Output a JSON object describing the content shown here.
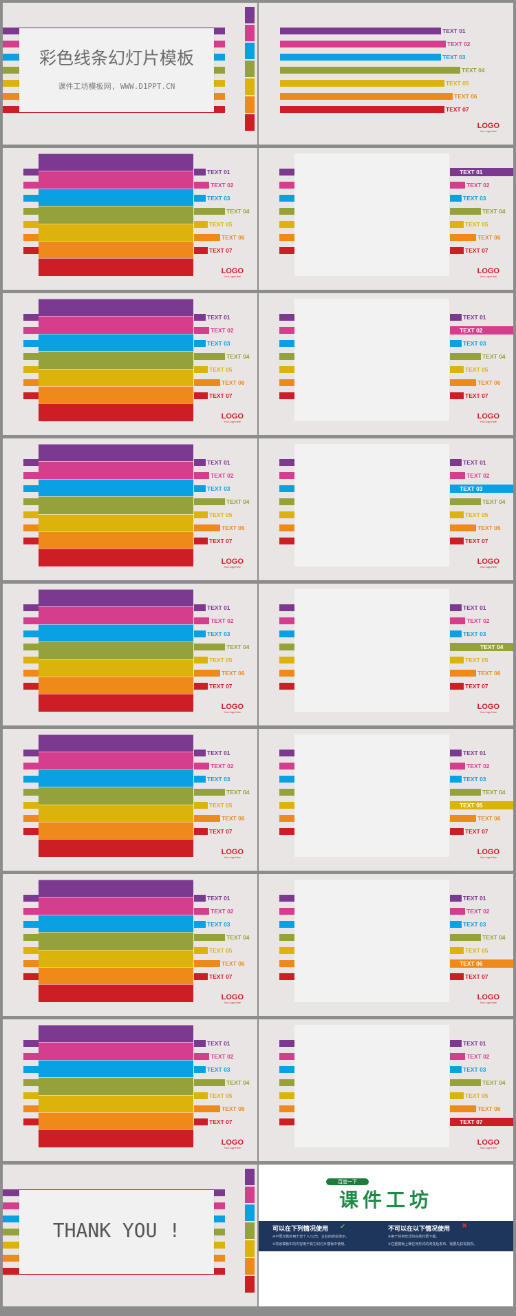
{
  "colors": [
    "#7b3990",
    "#d43e8c",
    "#0aa1e2",
    "#95a23b",
    "#dcb30a",
    "#ef8919",
    "#cd1e25"
  ],
  "labels": [
    "TEXT 01",
    "TEXT 02",
    "TEXT 03",
    "TEXT 04",
    "TEXT 05",
    "TEXT 06",
    "TEXT 07"
  ],
  "title_slide": {
    "title": "彩色线条幻灯片模板",
    "subtitle": "课件工坊模板网, WWW.D1PPT.CN"
  },
  "logo": {
    "mark": "LOGO",
    "tagline": "Your Logo Here"
  },
  "thanks": {
    "text": "THANK YOU !"
  },
  "credit": {
    "badge": "百度一下",
    "brand": "课件工坊",
    "left_heading": "可以在下列情况使用",
    "left_lines": [
      "※不限次数的用于您个人/公司、企业的商业演示。",
      "※将该模板中的内容用于其它幻灯片模板中使用。"
    ],
    "right_heading": "不可以在以下情况使用",
    "right_lines": [
      "※用于任何形式的在线付费下载。",
      "※在整模板上做任何形式的改变后发布，需要先获得授权。"
    ],
    "check_icon": "check-icon",
    "cross_icon": "cross-icon"
  },
  "highlight_slides": [
    0,
    1,
    2,
    3,
    4,
    5,
    6
  ]
}
